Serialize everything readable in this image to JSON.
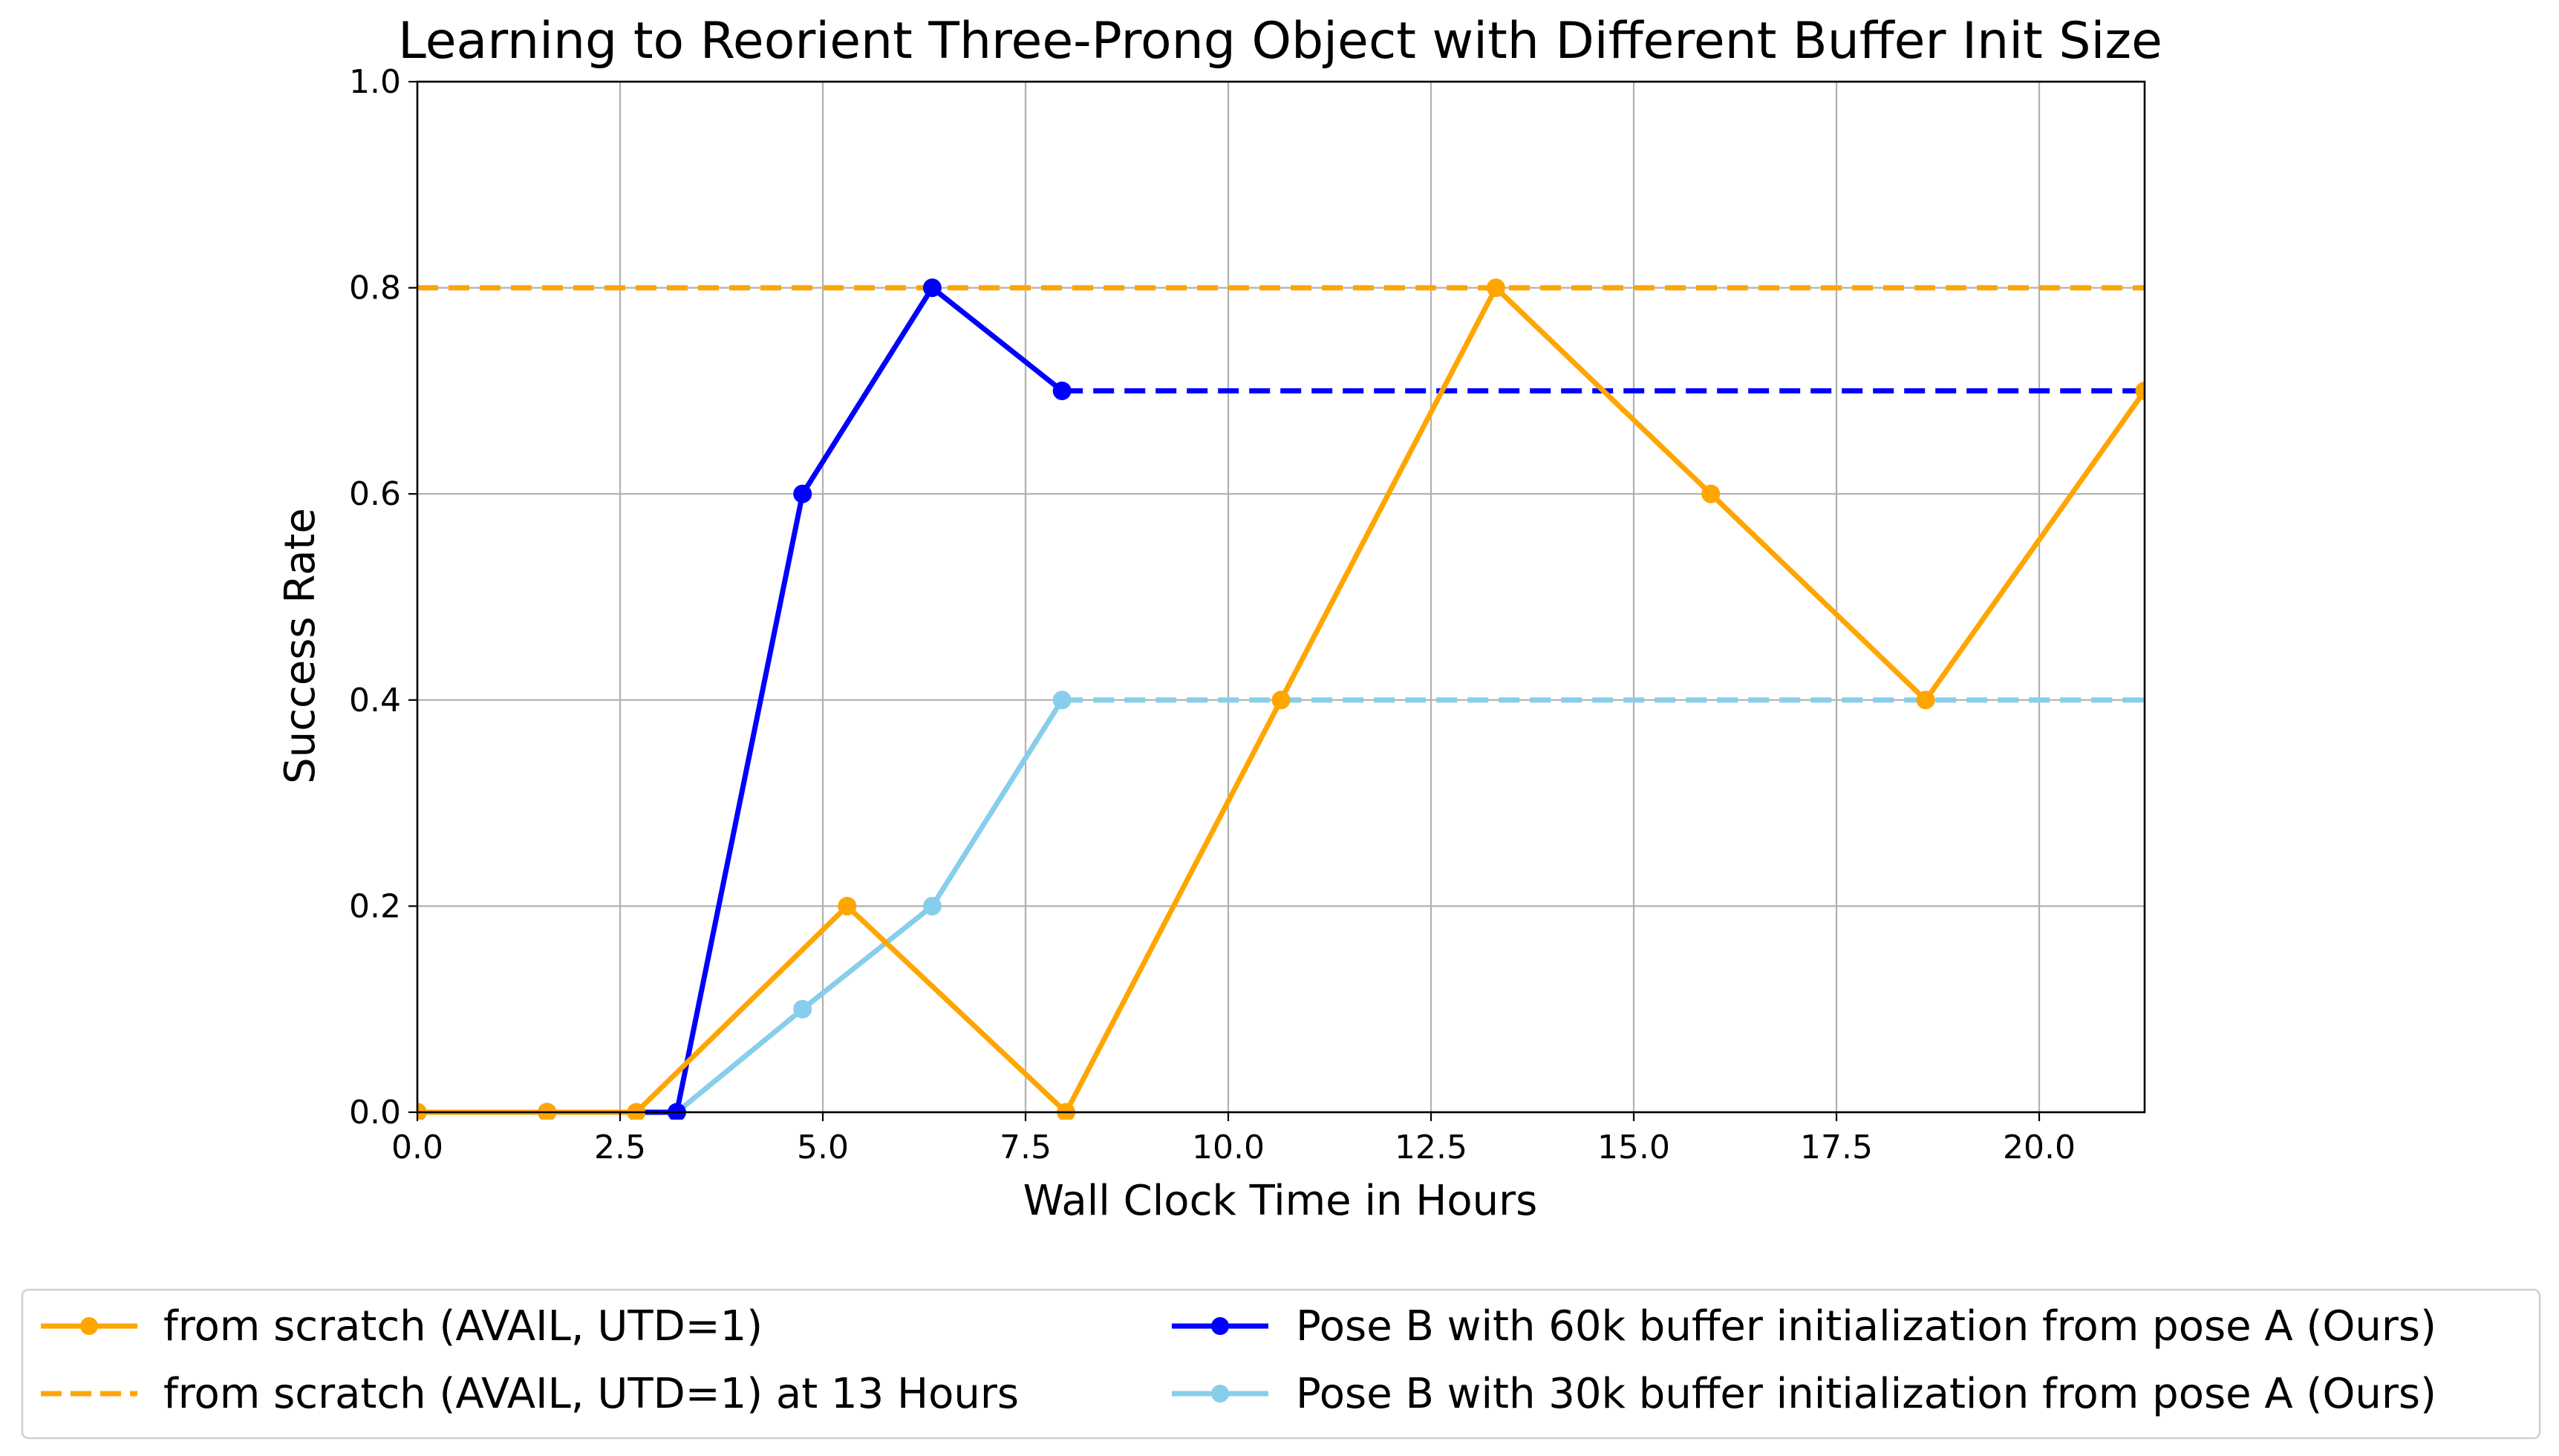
{
  "chart_data": {
    "type": "line",
    "title": "Learning to Reorient Three-Prong Object with Different Buffer Init Size",
    "xlabel": "Wall Clock Time in Hours",
    "ylabel": "Success Rate",
    "xlim": [
      0,
      21.3
    ],
    "ylim": [
      0,
      1.0
    ],
    "xticks": [
      0.0,
      2.5,
      5.0,
      7.5,
      10.0,
      12.5,
      15.0,
      17.5,
      20.0
    ],
    "xtick_labels": [
      "0.0",
      "2.5",
      "5.0",
      "7.5",
      "10.0",
      "12.5",
      "15.0",
      "17.5",
      "20.0"
    ],
    "yticks": [
      0.0,
      0.2,
      0.4,
      0.6,
      0.8,
      1.0
    ],
    "ytick_labels": [
      "0.0",
      "0.2",
      "0.4",
      "0.6",
      "0.8",
      "1.0"
    ],
    "grid": true,
    "legend_placement": "bottom-center, below axes, 2 columns",
    "series": [
      {
        "name": "from scratch (AVAIL, UTD=1)",
        "color": "#FFA500",
        "style": "solid",
        "marker": "circle",
        "x": [
          0,
          1.6,
          2.7,
          5.3,
          8.0,
          10.65,
          13.3,
          15.95,
          18.6,
          21.3
        ],
        "y": [
          0.0,
          0.0,
          0.0,
          0.2,
          0.0,
          0.4,
          0.8,
          0.6,
          0.4,
          0.7
        ]
      },
      {
        "name": "from scratch (AVAIL, UTD=1) at 13 Hours",
        "color": "#FFA500",
        "style": "dashed",
        "marker": "none",
        "x": [
          0,
          21.3
        ],
        "y": [
          0.8,
          0.8
        ]
      },
      {
        "name": "Pose B with 60k buffer initialization from pose A (Ours)",
        "color": "#0000FF",
        "style": "solid",
        "marker": "circle",
        "x": [
          0,
          1.6,
          3.2,
          4.75,
          6.35,
          7.95
        ],
        "y": [
          0.0,
          0.0,
          0.0,
          0.6,
          0.8,
          0.7
        ],
        "extension": {
          "style": "dashed",
          "x": [
            7.95,
            21.3
          ],
          "y": [
            0.7,
            0.7
          ]
        }
      },
      {
        "name": "Pose B with 30k buffer initialization from pose A (Ours)",
        "color": "#87CEEB",
        "style": "solid",
        "marker": "circle",
        "x": [
          0,
          1.6,
          3.2,
          4.75,
          6.35,
          7.95
        ],
        "y": [
          0.0,
          0.0,
          0.0,
          0.1,
          0.2,
          0.4
        ],
        "extension": {
          "style": "dashed",
          "x": [
            7.95,
            21.3
          ],
          "y": [
            0.4,
            0.4
          ]
        }
      }
    ]
  }
}
